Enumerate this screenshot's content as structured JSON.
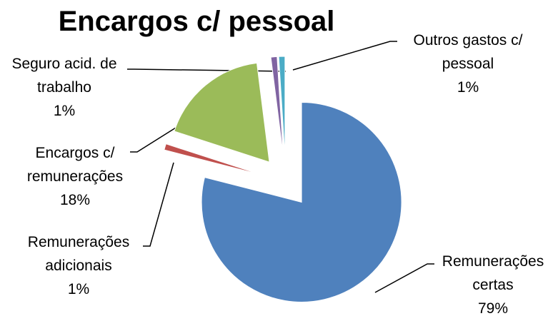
{
  "chart_data": {
    "type": "pie",
    "title": "Encargos c/ pessoal",
    "categories": [
      "Remunerações certas",
      "Remunerações adicionais",
      "Encargos c/ remunerações",
      "Seguro acid. de trabalho",
      "Outros gastos c/ pessoal"
    ],
    "values": [
      79,
      1,
      18,
      1,
      1
    ],
    "value_labels": [
      "79%",
      "1%",
      "18%",
      "1%",
      "1%"
    ],
    "colors": [
      "#4f81bd",
      "#c0504d",
      "#9bbb59",
      "#8064a2",
      "#4bacc6"
    ],
    "exploded": true
  }
}
